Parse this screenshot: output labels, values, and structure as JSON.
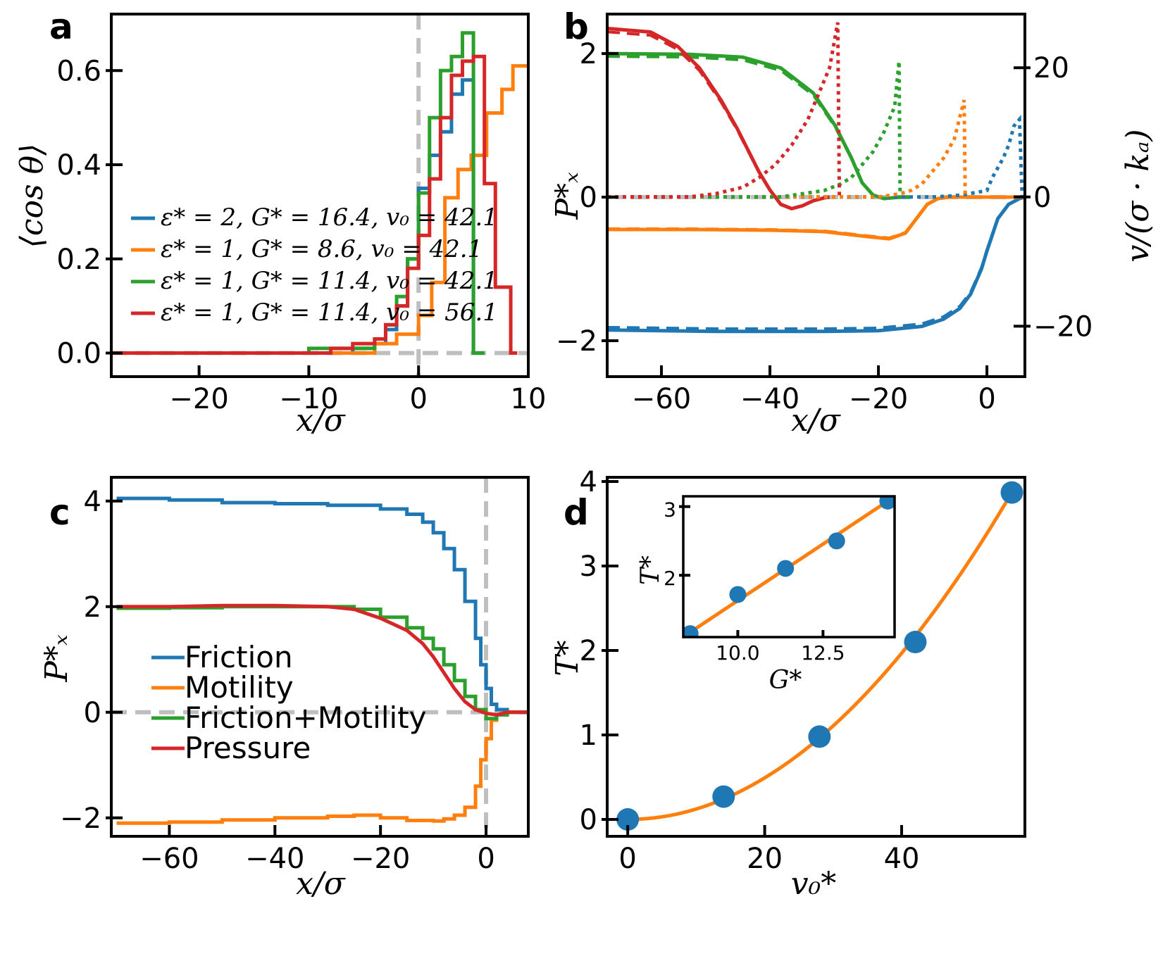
{
  "colors": {
    "blue": "#1f77b4",
    "orange": "#ff7f0e",
    "green": "#2ca02c",
    "red": "#d62728",
    "dashed_ref": "#bfbfbf"
  },
  "chart_data": [
    {
      "panel": "a",
      "type": "step",
      "xlabel": "x/σ",
      "ylabel": "⟨cos θ⟩",
      "xlim": [
        -28,
        10
      ],
      "ylim": [
        -0.05,
        0.72
      ],
      "xticks": [
        -20,
        -10,
        0,
        10
      ],
      "xtick_labels": [
        "−20",
        "−10",
        "0",
        "10"
      ],
      "yticks": [
        0.0,
        0.2,
        0.4,
        0.6
      ],
      "ytick_labels": [
        "0.0",
        "0.2",
        "0.4",
        "0.6"
      ],
      "reference_lines": {
        "vertical_x": 0,
        "horizontal_y": 0
      },
      "legend_position": "center-left",
      "series": [
        {
          "name": "ε* = 2, G* = 16.4, v₀ = 42.1",
          "color": "blue",
          "edges": [
            -28,
            -26,
            -24,
            -22,
            -20,
            -18,
            -16,
            -14,
            -12,
            -10,
            -8,
            -6,
            -4,
            -3,
            -2,
            -1,
            0,
            1,
            2,
            3,
            4,
            5,
            6
          ],
          "values": [
            0,
            0,
            0,
            0,
            0,
            0,
            0,
            0,
            0,
            0,
            0,
            0.01,
            0.02,
            0.05,
            0.1,
            0.2,
            0.35,
            0.42,
            0.47,
            0.55,
            0.58,
            0
          ]
        },
        {
          "name": "ε* = 1, G* = 8.6, v₀ = 42.1",
          "color": "orange",
          "edges": [
            -28,
            -26,
            -24,
            -22,
            -20,
            -18,
            -16,
            -14,
            -12,
            -10,
            -8,
            -6,
            -4,
            -2,
            0,
            1.2,
            2.4,
            3.6,
            4.8,
            6.2,
            7.6,
            8.6,
            9.8,
            10
          ],
          "values": [
            0,
            0,
            0,
            0,
            0,
            0,
            0,
            0,
            0,
            0,
            0,
            0,
            0.02,
            0.04,
            0.08,
            0.15,
            0.33,
            0.39,
            0.42,
            0.51,
            0.56,
            0.61,
            0.61
          ]
        },
        {
          "name": "ε* = 1, G* = 11.4, v₀ = 42.1",
          "color": "green",
          "edges": [
            -28,
            -26,
            -24,
            -22,
            -20,
            -18,
            -16,
            -14,
            -12,
            -10,
            -8,
            -6,
            -4,
            -3,
            -2,
            -1,
            0,
            1,
            2,
            3,
            4,
            5,
            6
          ],
          "values": [
            0,
            0,
            0,
            0,
            0,
            0,
            0,
            0,
            0,
            0.01,
            0.01,
            0.01,
            0.03,
            0.06,
            0.12,
            0.2,
            0.34,
            0.5,
            0.6,
            0.63,
            0.68,
            0
          ]
        },
        {
          "name": "ε* = 1, G* = 11.4, v₀ = 56.1",
          "color": "red",
          "edges": [
            -28,
            -26,
            -24,
            -22,
            -20,
            -18,
            -16,
            -14,
            -12,
            -10,
            -8,
            -6,
            -4,
            -3,
            -2,
            -1,
            0,
            1,
            2,
            3,
            4,
            5,
            6,
            7,
            8.4,
            9
          ],
          "values": [
            0,
            0,
            0,
            0,
            0,
            0,
            0,
            0,
            0,
            0,
            0.01,
            0.02,
            0.03,
            0.06,
            0.1,
            0.18,
            0.25,
            0.37,
            0.5,
            0.59,
            0.62,
            0.63,
            0.36,
            0.14,
            0
          ]
        }
      ]
    },
    {
      "panel": "b",
      "type": "line",
      "xlabel": "x/σ",
      "ylabel": "P*ₓ",
      "ylabel_right": "v/(σ · kₐ)",
      "xlim": [
        -70,
        7
      ],
      "ylim": [
        -2.5,
        2.55
      ],
      "ylim_right": [
        -27.8,
        28.3
      ],
      "xticks": [
        -60,
        -40,
        -20,
        0
      ],
      "xtick_labels": [
        "−60",
        "−40",
        "−20",
        "0"
      ],
      "yticks": [
        -2,
        0,
        2
      ],
      "ytick_labels": [
        "−2",
        "0",
        "2"
      ],
      "yticks_right": [
        -20,
        0,
        20
      ],
      "ytick_labels_right": [
        "−20",
        "0",
        "20"
      ],
      "reference_lines": {
        "horizontal_y": 0
      },
      "series": [
        {
          "name": "blue pressure",
          "color": "blue",
          "style": "solid",
          "x": [
            -70,
            -50,
            -30,
            -20,
            -12,
            -8,
            -5,
            -3,
            -1,
            0,
            2,
            4,
            6,
            7
          ],
          "y": [
            -1.85,
            -1.87,
            -1.87,
            -1.86,
            -1.8,
            -1.7,
            -1.55,
            -1.35,
            -1.0,
            -0.75,
            -0.3,
            -0.1,
            -0.02,
            0
          ]
        },
        {
          "name": "orange pressure",
          "color": "orange",
          "style": "solid",
          "x": [
            -70,
            -55,
            -40,
            -30,
            -22,
            -18,
            -15,
            -13,
            -11,
            -9,
            -7,
            -5,
            7
          ],
          "y": [
            -0.45,
            -0.45,
            -0.46,
            -0.48,
            -0.55,
            -0.58,
            -0.5,
            -0.3,
            -0.1,
            -0.02,
            0,
            0,
            0
          ]
        },
        {
          "name": "green pressure",
          "color": "green",
          "style": "solid",
          "x": [
            -70,
            -55,
            -45,
            -38,
            -32,
            -28,
            -25,
            -23,
            -21,
            -19,
            -16,
            -14
          ],
          "y": [
            2.0,
            1.99,
            1.95,
            1.8,
            1.45,
            1.0,
            0.55,
            0.2,
            0.03,
            -0.02,
            0,
            0
          ]
        },
        {
          "name": "red pressure",
          "color": "red",
          "style": "solid",
          "x": [
            -70,
            -62,
            -57,
            -53,
            -49,
            -46,
            -44,
            -42,
            -40,
            -38,
            -36,
            -34,
            -32,
            -30,
            -29
          ],
          "y": [
            2.35,
            2.3,
            2.1,
            1.8,
            1.35,
            0.95,
            0.65,
            0.35,
            0.1,
            -0.1,
            -0.16,
            -0.12,
            -0.05,
            -0.01,
            0
          ]
        },
        {
          "name": "blue velocity",
          "color": "blue",
          "style": "dotted",
          "axis": "right",
          "x": [
            -70,
            -10,
            -6,
            -4,
            0,
            1,
            2,
            3,
            4,
            5,
            6,
            6.5
          ],
          "y": [
            0,
            0,
            0.2,
            0.4,
            1.0,
            3.0,
            4.5,
            6.0,
            8.0,
            11.0,
            12.0,
            0
          ]
        },
        {
          "name": "orange velocity",
          "color": "orange",
          "style": "dotted",
          "axis": "right",
          "x": [
            -70,
            -20,
            -16,
            -14,
            -12,
            -10,
            -8,
            -6,
            -4.2,
            -4
          ],
          "y": [
            0,
            0,
            0.5,
            1.0,
            2.0,
            4.0,
            6.0,
            9.0,
            15.0,
            0
          ]
        },
        {
          "name": "green velocity",
          "color": "green",
          "style": "dotted",
          "axis": "right",
          "x": [
            -70,
            -38,
            -34,
            -30,
            -27,
            -25,
            -23,
            -21,
            -19,
            -17,
            -16.2,
            -16
          ],
          "y": [
            0,
            0,
            0.5,
            1.0,
            2.0,
            3.0,
            5.0,
            7.0,
            10.0,
            14.0,
            21.0,
            0
          ]
        },
        {
          "name": "red velocity",
          "color": "red",
          "style": "dotted",
          "axis": "right",
          "x": [
            -70,
            -55,
            -50,
            -45,
            -42,
            -39,
            -36,
            -33,
            -31,
            -29,
            -27.5,
            -27.2
          ],
          "y": [
            0,
            0,
            0.5,
            1.5,
            3.0,
            5.0,
            8.0,
            12.0,
            16.0,
            20.0,
            27.0,
            0
          ]
        }
      ]
    },
    {
      "panel": "c",
      "type": "step",
      "xlabel": "x/σ",
      "ylabel": "P*ₓ",
      "xlim": [
        -71,
        8
      ],
      "ylim": [
        -2.35,
        4.45
      ],
      "xticks": [
        -60,
        -40,
        -20,
        0
      ],
      "xtick_labels": [
        "−60",
        "−40",
        "−20",
        "0"
      ],
      "yticks": [
        -2,
        0,
        2,
        4
      ],
      "ytick_labels": [
        "−2",
        "0",
        "2",
        "4"
      ],
      "reference_lines": {
        "vertical_x": 0,
        "horizontal_y": 0
      },
      "legend_position": "center-left",
      "series": [
        {
          "name": "Friction",
          "color": "blue",
          "x": [
            -70,
            -60,
            -50,
            -40,
            -30,
            -20,
            -15,
            -12,
            -10,
            -8,
            -6,
            -4,
            -2,
            -1,
            0,
            1,
            2,
            4,
            8
          ],
          "y": [
            4.05,
            4.02,
            3.97,
            3.95,
            3.92,
            3.85,
            3.75,
            3.6,
            3.4,
            3.1,
            2.7,
            2.1,
            1.4,
            0.9,
            0.45,
            0.15,
            0.05,
            0.0,
            0.0
          ]
        },
        {
          "name": "Motility",
          "color": "orange",
          "x": [
            -70,
            -60,
            -50,
            -40,
            -30,
            -25,
            -20,
            -15,
            -10,
            -8,
            -6,
            -4,
            -2,
            -1,
            0,
            1,
            2,
            4,
            8
          ],
          "y": [
            -2.1,
            -2.08,
            -2.04,
            -2.0,
            -1.97,
            -1.95,
            -2.0,
            -2.05,
            -2.06,
            -2.02,
            -1.95,
            -1.8,
            -1.4,
            -0.9,
            -0.5,
            -0.15,
            -0.05,
            0.0,
            0.0
          ]
        },
        {
          "name": "Friction+Motility",
          "color": "green",
          "x": [
            -70,
            -60,
            -50,
            -40,
            -30,
            -25,
            -20,
            -15,
            -12,
            -10,
            -8,
            -6,
            -4,
            -2,
            0,
            2,
            4,
            8
          ],
          "y": [
            1.97,
            1.98,
            2.0,
            2.0,
            2.0,
            1.95,
            1.8,
            1.6,
            1.4,
            1.2,
            0.9,
            0.6,
            0.3,
            0.05,
            -0.12,
            -0.05,
            0.0,
            0.0
          ]
        },
        {
          "name": "Pressure",
          "color": "red",
          "smooth": true,
          "x": [
            -70,
            -60,
            -50,
            -40,
            -30,
            -25,
            -20,
            -15,
            -12,
            -10,
            -8,
            -6,
            -4,
            -2,
            0,
            2,
            4,
            8
          ],
          "y": [
            2.0,
            2.0,
            2.02,
            2.02,
            2.0,
            1.95,
            1.78,
            1.55,
            1.3,
            1.05,
            0.75,
            0.45,
            0.2,
            0.05,
            -0.02,
            -0.05,
            0.0,
            0.0
          ]
        }
      ]
    },
    {
      "panel": "d",
      "type": "scatter",
      "xlabel": "v₀*",
      "ylabel": "T*",
      "xlim": [
        -3,
        58
      ],
      "ylim": [
        -0.2,
        4.05
      ],
      "xticks": [
        0,
        20,
        40
      ],
      "xtick_labels": [
        "0",
        "20",
        "40"
      ],
      "yticks": [
        0,
        1,
        2,
        3,
        4
      ],
      "ytick_labels": [
        "0",
        "1",
        "2",
        "3",
        "4"
      ],
      "points": {
        "x": [
          0,
          14,
          28,
          42,
          56.1
        ],
        "y": [
          0,
          0.27,
          0.98,
          2.1,
          3.87
        ],
        "color": "blue"
      },
      "fit": {
        "type": "quadratic",
        "coef_a": 0.00123,
        "color": "orange"
      },
      "inset": {
        "xlabel": "G*",
        "ylabel": "T*",
        "xlim": [
          8.4,
          14.6
        ],
        "ylim": [
          1.1,
          3.15
        ],
        "xticks": [
          10.0,
          12.5
        ],
        "xtick_labels": [
          "10.0",
          "12.5"
        ],
        "yticks": [
          2,
          3
        ],
        "ytick_labels": [
          "2",
          "3"
        ],
        "points": {
          "x": [
            8.6,
            10.0,
            11.4,
            12.9,
            14.4
          ],
          "y": [
            1.15,
            1.72,
            2.1,
            2.5,
            3.08
          ],
          "color": "blue"
        },
        "fit": {
          "type": "linear",
          "x": [
            8.6,
            14.4
          ],
          "y": [
            1.17,
            3.08
          ],
          "color": "orange"
        }
      }
    }
  ],
  "panel_letters": [
    "a",
    "b",
    "c",
    "d"
  ],
  "legend_c": [
    "Friction",
    "Motility",
    "Friction+Motility",
    "Pressure"
  ]
}
